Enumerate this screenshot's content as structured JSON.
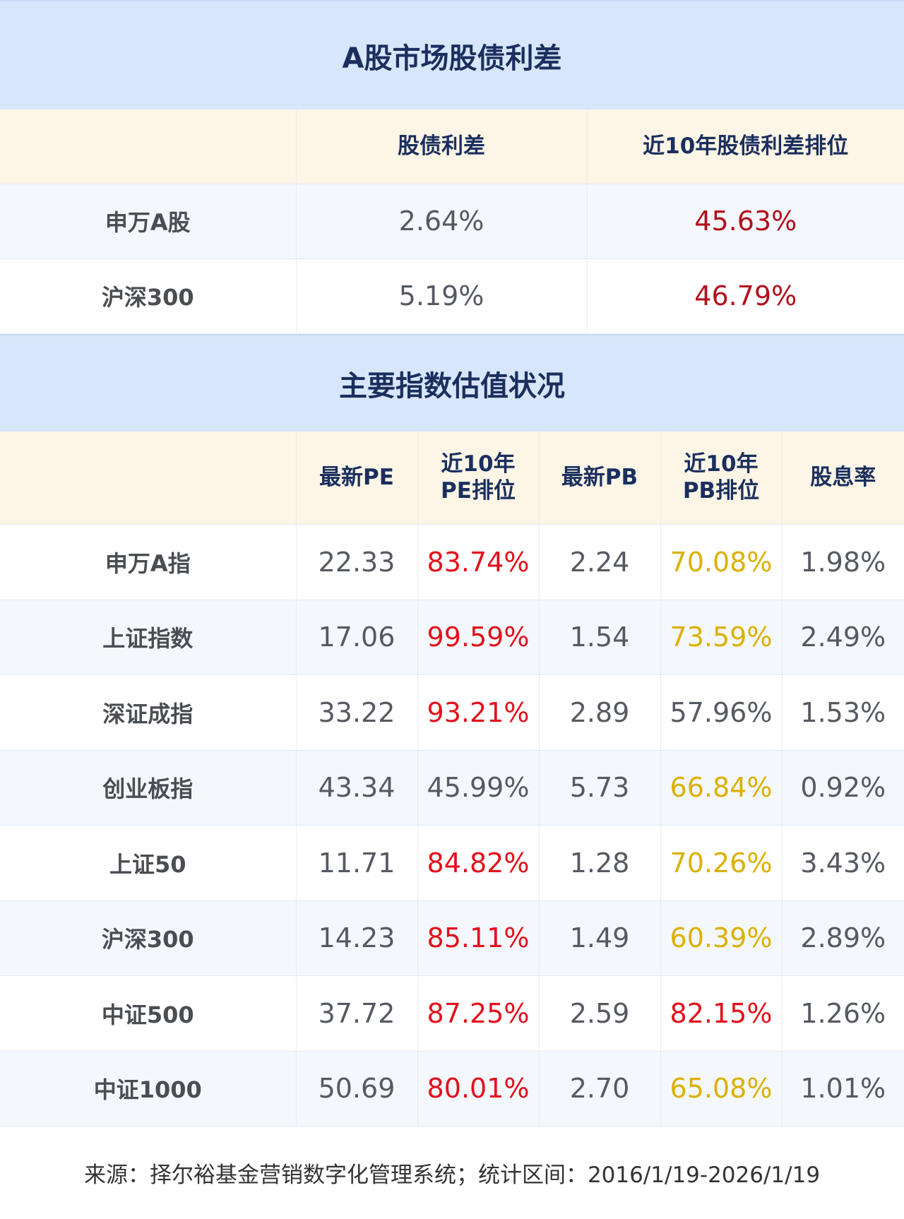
{
  "section1": {
    "title": "A股市场股债利差",
    "headers": [
      "",
      "股债利差",
      "近10年股债利差排位"
    ],
    "rows": [
      {
        "name": "申万A股",
        "spread": "2.64%",
        "rank": "45.63%"
      },
      {
        "name": "沪深300",
        "spread": "5.19%",
        "rank": "46.79%"
      }
    ]
  },
  "section2": {
    "title": "主要指数估值状况",
    "headers": [
      "",
      "最新PE",
      "近10年\nPE排位",
      "最新PB",
      "近10年\nPB排位",
      "股息率"
    ],
    "rows": [
      {
        "name": "申万A指",
        "pe": "22.33",
        "pe_rank": "83.74%",
        "pb": "2.24",
        "pb_rank": "70.08%",
        "dy": "1.98%",
        "pe_color": "red",
        "pb_color": "gold"
      },
      {
        "name": "上证指数",
        "pe": "17.06",
        "pe_rank": "99.59%",
        "pb": "1.54",
        "pb_rank": "73.59%",
        "dy": "2.49%",
        "pe_color": "red",
        "pb_color": "gold"
      },
      {
        "name": "深证成指",
        "pe": "33.22",
        "pe_rank": "93.21%",
        "pb": "2.89",
        "pb_rank": "57.96%",
        "dy": "1.53%",
        "pe_color": "red",
        "pb_color": "gray"
      },
      {
        "name": "创业板指",
        "pe": "43.34",
        "pe_rank": "45.99%",
        "pb": "5.73",
        "pb_rank": "66.84%",
        "dy": "0.92%",
        "pe_color": "gray",
        "pb_color": "gold"
      },
      {
        "name": "上证50",
        "pe": "11.71",
        "pe_rank": "84.82%",
        "pb": "1.28",
        "pb_rank": "70.26%",
        "dy": "3.43%",
        "pe_color": "red",
        "pb_color": "gold"
      },
      {
        "name": "沪深300",
        "pe": "14.23",
        "pe_rank": "85.11%",
        "pb": "1.49",
        "pb_rank": "60.39%",
        "dy": "2.89%",
        "pe_color": "red",
        "pb_color": "gold"
      },
      {
        "name": "中证500",
        "pe": "37.72",
        "pe_rank": "87.25%",
        "pb": "2.59",
        "pb_rank": "82.15%",
        "dy": "1.26%",
        "pe_color": "red",
        "pb_color": "red"
      },
      {
        "name": "中证1000",
        "pe": "50.69",
        "pe_rank": "80.01%",
        "pb": "2.70",
        "pb_rank": "65.08%",
        "dy": "1.01%",
        "pe_color": "red",
        "pb_color": "gold"
      }
    ]
  },
  "colors": {
    "title_bg": "#d7e6fa",
    "header_bg": "#fdf5e6",
    "navy": "#1b2f5e",
    "red": "#e2111c",
    "dark_red": "#b3101c",
    "gold": "#dcb000"
  },
  "footer": "来源：择尔裕基金营销数字化管理系统；统计区间：2016/1/19-2026/1/19"
}
